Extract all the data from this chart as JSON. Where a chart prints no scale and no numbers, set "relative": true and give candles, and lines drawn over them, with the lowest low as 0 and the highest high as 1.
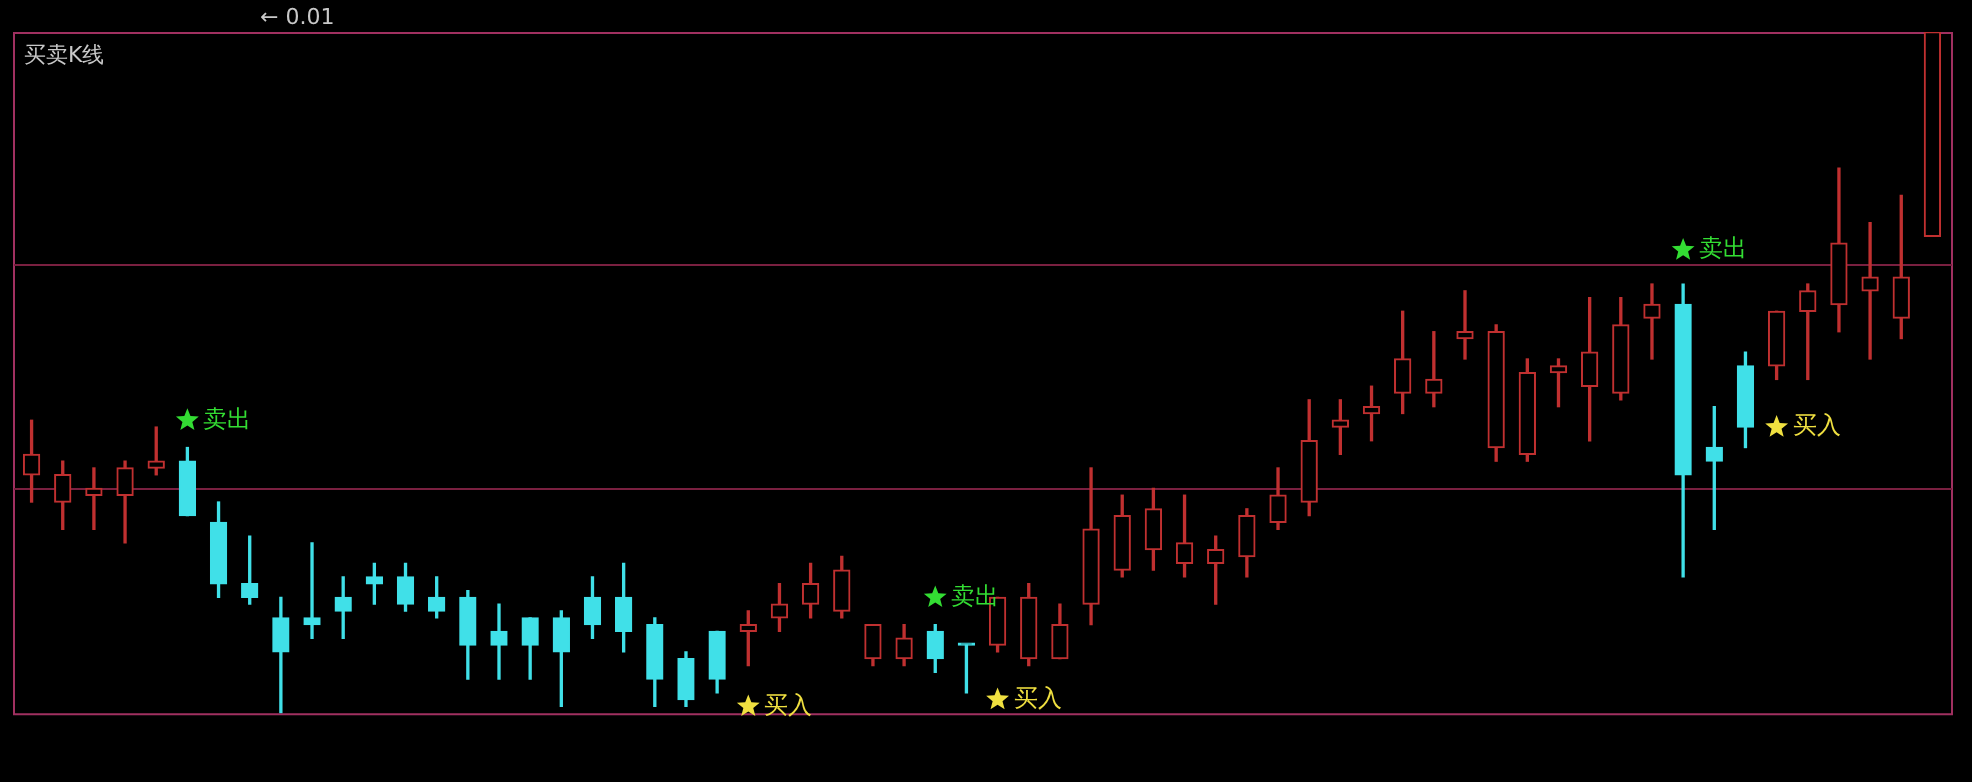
{
  "chart_data": {
    "type": "candlestick",
    "title": "买卖K线",
    "relative": true,
    "categories": [
      null,
      null,
      null,
      null,
      null,
      null,
      null,
      null,
      null,
      null,
      null,
      null,
      null,
      null,
      null,
      null,
      null,
      null,
      null,
      null,
      null,
      null,
      null,
      null,
      null,
      null,
      null,
      null,
      null,
      null,
      null,
      null,
      null,
      null,
      null,
      null,
      null,
      null,
      null,
      null,
      null,
      null,
      null,
      null,
      null,
      null,
      null,
      null,
      null,
      null,
      null,
      null,
      null,
      null,
      null,
      null,
      null,
      null,
      null,
      null,
      null,
      null
    ],
    "ohlc": [
      [
        0.35,
        0.43,
        0.31,
        0.38
      ],
      [
        0.31,
        0.37,
        0.27,
        0.35
      ],
      [
        0.32,
        0.36,
        0.27,
        0.33
      ],
      [
        0.32,
        0.37,
        0.25,
        0.36
      ],
      [
        0.36,
        0.42,
        0.35,
        0.37
      ],
      [
        0.37,
        0.39,
        0.29,
        0.29
      ],
      [
        0.28,
        0.31,
        0.17,
        0.19
      ],
      [
        0.19,
        0.26,
        0.16,
        0.17
      ],
      [
        0.14,
        0.17,
        0,
        0.09
      ],
      [
        0.14,
        0.25,
        0.11,
        0.13
      ],
      [
        0.17,
        0.2,
        0.11,
        0.15
      ],
      [
        0.2,
        0.22,
        0.16,
        0.19
      ],
      [
        0.2,
        0.22,
        0.15,
        0.16
      ],
      [
        0.17,
        0.2,
        0.14,
        0.15
      ],
      [
        0.17,
        0.18,
        0.05,
        0.1
      ],
      [
        0.12,
        0.16,
        0.05,
        0.1
      ],
      [
        0.14,
        0.14,
        0.05,
        0.1
      ],
      [
        0.14,
        0.15,
        0.01,
        0.09
      ],
      [
        0.17,
        0.2,
        0.11,
        0.13
      ],
      [
        0.17,
        0.22,
        0.09,
        0.12
      ],
      [
        0.13,
        0.14,
        0.01,
        0.05
      ],
      [
        0.08,
        0.09,
        0.01,
        0.02
      ],
      [
        0.12,
        0.12,
        0.03,
        0.05
      ],
      [
        0.12,
        0.15,
        0.07,
        0.13
      ],
      [
        0.14,
        0.19,
        0.12,
        0.16
      ],
      [
        0.16,
        0.22,
        0.14,
        0.19
      ],
      [
        0.15,
        0.23,
        0.14,
        0.21
      ],
      [
        0.08,
        0.13,
        0.07,
        0.13
      ],
      [
        0.08,
        0.13,
        0.07,
        0.11
      ],
      [
        0.12,
        0.13,
        0.06,
        0.08
      ],
      [
        0.1,
        0.1,
        0.03,
        0.1
      ],
      [
        0.1,
        0.17,
        0.09,
        0.17
      ],
      [
        0.08,
        0.19,
        0.07,
        0.17
      ],
      [
        0.08,
        0.16,
        0.08,
        0.13
      ],
      [
        0.16,
        0.36,
        0.13,
        0.27
      ],
      [
        0.21,
        0.32,
        0.2,
        0.29
      ],
      [
        0.24,
        0.33,
        0.21,
        0.3
      ],
      [
        0.22,
        0.32,
        0.2,
        0.25
      ],
      [
        0.22,
        0.26,
        0.16,
        0.24
      ],
      [
        0.23,
        0.3,
        0.2,
        0.29
      ],
      [
        0.28,
        0.36,
        0.27,
        0.32
      ],
      [
        0.31,
        0.46,
        0.29,
        0.4
      ],
      [
        0.42,
        0.46,
        0.38,
        0.43
      ],
      [
        0.44,
        0.48,
        0.4,
        0.45
      ],
      [
        0.47,
        0.59,
        0.44,
        0.52
      ],
      [
        0.47,
        0.56,
        0.45,
        0.49
      ],
      [
        0.55,
        0.62,
        0.52,
        0.56
      ],
      [
        0.39,
        0.57,
        0.37,
        0.56
      ],
      [
        0.38,
        0.52,
        0.37,
        0.5
      ],
      [
        0.5,
        0.52,
        0.45,
        0.51
      ],
      [
        0.48,
        0.61,
        0.4,
        0.53
      ],
      [
        0.47,
        0.61,
        0.46,
        0.57
      ],
      [
        0.58,
        0.63,
        0.52,
        0.6
      ],
      [
        0.6,
        0.63,
        0.2,
        0.35
      ],
      [
        0.39,
        0.45,
        0.27,
        0.37
      ],
      [
        0.51,
        0.53,
        0.39,
        0.42
      ],
      [
        0.51,
        0.59,
        0.49,
        0.59
      ],
      [
        0.59,
        0.63,
        0.49,
        0.62
      ],
      [
        0.6,
        0.8,
        0.56,
        0.69
      ],
      [
        0.62,
        0.72,
        0.52,
        0.64
      ],
      [
        0.58,
        0.76,
        0.55,
        0.64
      ],
      [
        0.7,
        1,
        0.7,
        1
      ]
    ],
    "colors": [
      "#c03030",
      "#c03030",
      "#c03030",
      "#c03030",
      "#c03030",
      "#40e0e8",
      "#40e0e8",
      "#40e0e8",
      "#40e0e8",
      "#40e0e8",
      "#40e0e8",
      "#40e0e8",
      "#40e0e8",
      "#40e0e8",
      "#40e0e8",
      "#40e0e8",
      "#40e0e8",
      "#40e0e8",
      "#40e0e8",
      "#40e0e8",
      "#40e0e8",
      "#40e0e8",
      "#40e0e8",
      "#c03030",
      "#c03030",
      "#c03030",
      "#c03030",
      "#c03030",
      "#c03030",
      "#40e0e8",
      "#40e0e8",
      "#c03030",
      "#c03030",
      "#c03030",
      "#c03030",
      "#c03030",
      "#c03030",
      "#c03030",
      "#c03030",
      "#c03030",
      "#c03030",
      "#c03030",
      "#c03030",
      "#c03030",
      "#c03030",
      "#c03030",
      "#c03030",
      "#c03030",
      "#c03030",
      "#c03030",
      "#c03030",
      "#c03030",
      "#c03030",
      "#40e0e8",
      "#40e0e8",
      "#40e0e8",
      "#c03030",
      "#c03030",
      "#c03030",
      "#c03030",
      "#c03030",
      "#c03030"
    ],
    "series": [
      {
        "name": "卖出",
        "type": "scatter",
        "marker": "star",
        "color": "#33dd33",
        "values": [
          null,
          null,
          null,
          null,
          null,
          0.43,
          null,
          null,
          null,
          null,
          null,
          null,
          null,
          null,
          null,
          null,
          null,
          null,
          null,
          null,
          null,
          null,
          null,
          null,
          null,
          null,
          null,
          null,
          null,
          0.17,
          null,
          null,
          null,
          null,
          null,
          null,
          null,
          null,
          null,
          null,
          null,
          null,
          null,
          null,
          null,
          null,
          null,
          null,
          null,
          null,
          null,
          null,
          null,
          0.68,
          null,
          null,
          null,
          null,
          null,
          null,
          null,
          null
        ]
      },
      {
        "name": "买入",
        "type": "scatter",
        "marker": "star",
        "color": "#f0e040",
        "values": [
          null,
          null,
          null,
          null,
          null,
          null,
          null,
          null,
          null,
          null,
          null,
          null,
          null,
          null,
          null,
          null,
          null,
          null,
          null,
          null,
          null,
          null,
          null,
          0.01,
          null,
          null,
          null,
          null,
          null,
          null,
          null,
          0.02,
          null,
          null,
          null,
          null,
          null,
          null,
          null,
          null,
          null,
          null,
          null,
          null,
          null,
          null,
          null,
          null,
          null,
          null,
          null,
          null,
          null,
          null,
          null,
          null,
          0.42,
          null,
          null,
          null,
          null,
          null
        ]
      }
    ],
    "ref_lines": [
      {
        "axis": "y",
        "value": 0.66,
        "color": "#7a2040"
      },
      {
        "axis": "y",
        "value": 0.33,
        "color": "#7a2040"
      }
    ],
    "annotations": [
      "← 0.01"
    ],
    "legend": false
  }
}
